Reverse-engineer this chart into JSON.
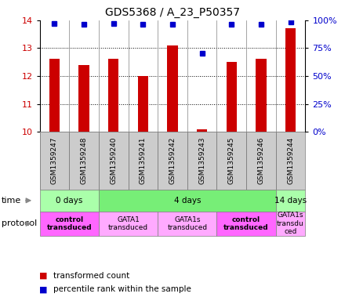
{
  "title": "GDS5368 / A_23_P50357",
  "samples": [
    "GSM1359247",
    "GSM1359248",
    "GSM1359240",
    "GSM1359241",
    "GSM1359242",
    "GSM1359243",
    "GSM1359245",
    "GSM1359246",
    "GSM1359244"
  ],
  "bar_values": [
    12.6,
    12.4,
    12.6,
    12.0,
    13.1,
    10.1,
    12.5,
    12.6,
    13.7
  ],
  "percentile_values": [
    97,
    96,
    97,
    96,
    96,
    70,
    96,
    96,
    98
  ],
  "bar_color": "#cc0000",
  "percentile_color": "#0000cc",
  "ylim_left": [
    10,
    14
  ],
  "yticks_left": [
    10,
    11,
    12,
    13,
    14
  ],
  "yticks_right": [
    0,
    25,
    50,
    75,
    100
  ],
  "ytick_labels_right": [
    "0%",
    "25%",
    "50%",
    "75%",
    "100%"
  ],
  "time_groups": [
    {
      "label": "0 days",
      "start": 0,
      "end": 2,
      "color": "#aaffaa"
    },
    {
      "label": "4 days",
      "start": 2,
      "end": 8,
      "color": "#77ee77"
    },
    {
      "label": "14 days",
      "start": 8,
      "end": 9,
      "color": "#aaffaa"
    }
  ],
  "protocol_groups": [
    {
      "label": "control\ntransduced",
      "start": 0,
      "end": 2,
      "color": "#ff66ff",
      "bold": true
    },
    {
      "label": "GATA1\ntransduced",
      "start": 2,
      "end": 4,
      "color": "#ffaaff",
      "bold": false
    },
    {
      "label": "GATA1s\ntransduced",
      "start": 4,
      "end": 6,
      "color": "#ffaaff",
      "bold": false
    },
    {
      "label": "control\ntransduced",
      "start": 6,
      "end": 8,
      "color": "#ff66ff",
      "bold": true
    },
    {
      "label": "GATA1s\ntransdu\nced",
      "start": 8,
      "end": 9,
      "color": "#ffaaff",
      "bold": false
    }
  ],
  "sample_box_color": "#cccccc",
  "dotted_lines": [
    11,
    12,
    13
  ],
  "bar_width": 0.35
}
